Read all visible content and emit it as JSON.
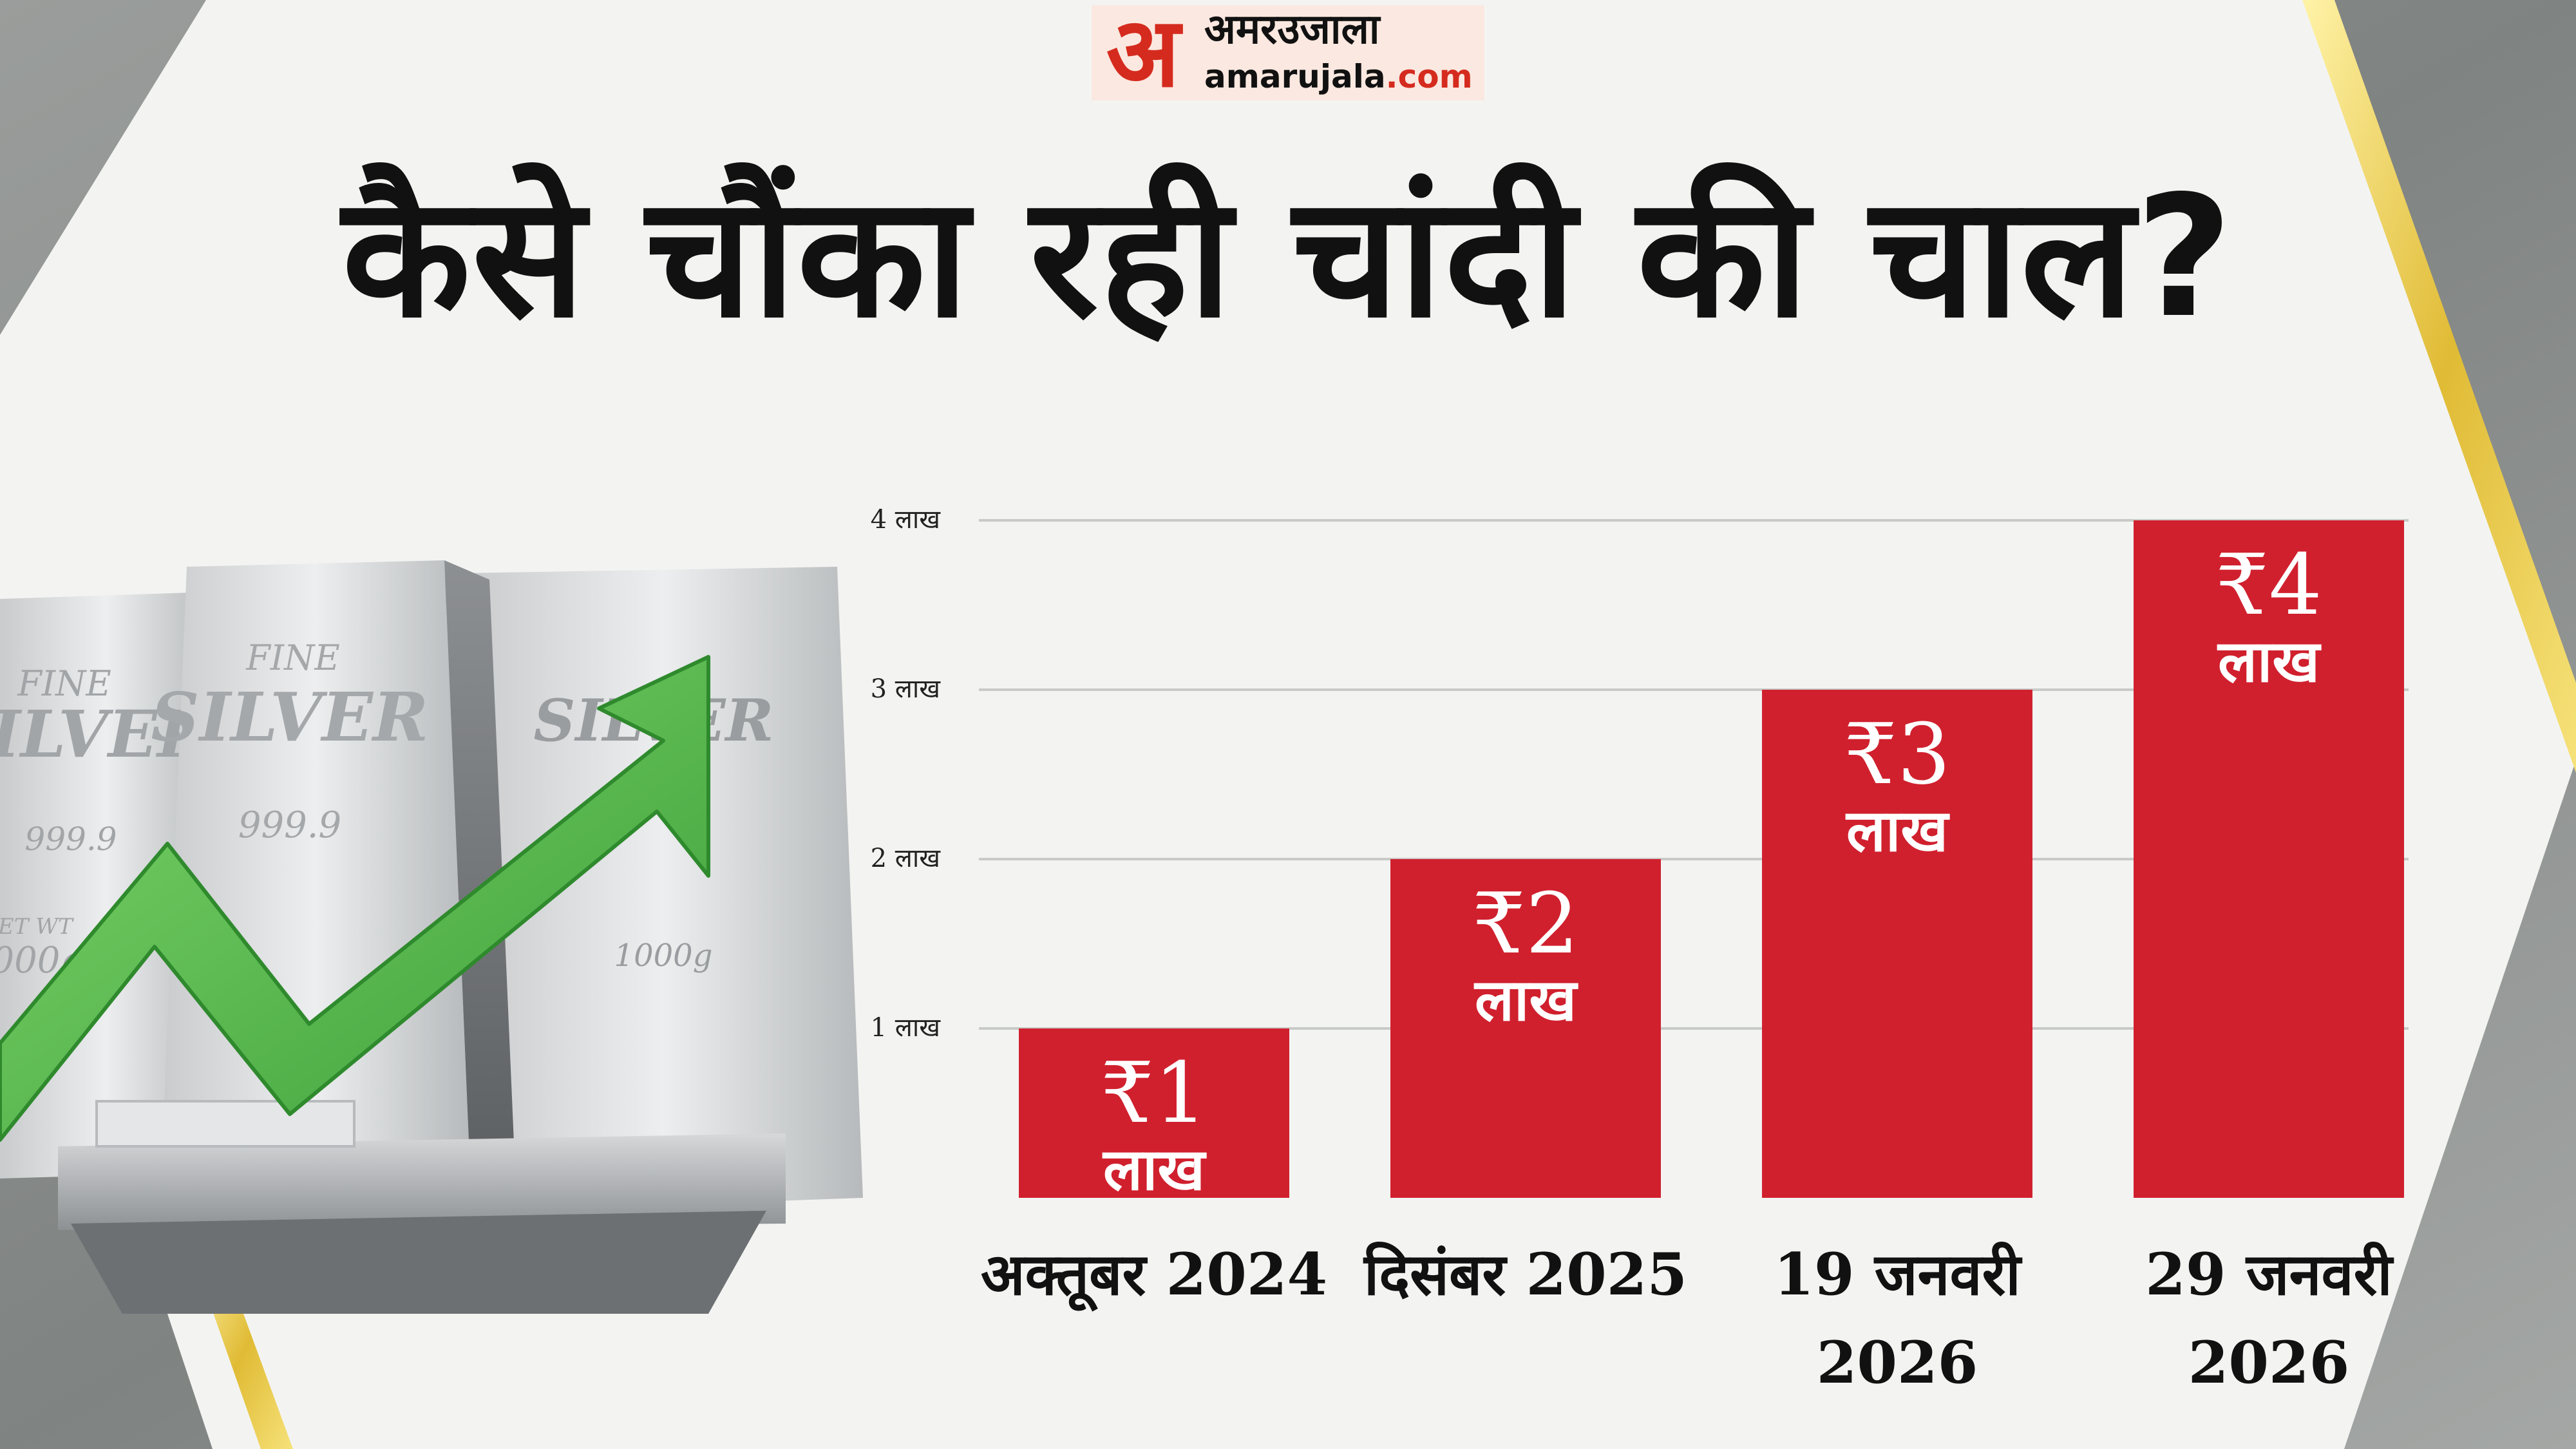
{
  "brand": {
    "mark": "अ",
    "name_hindi": "अमरउजाला",
    "domain_main": "amarujala",
    "domain_tld": ".com"
  },
  "title": "कैसे चौंका रही चांदी की चाल?",
  "illustration": {
    "bar_text_fine": "FINE",
    "bar_text_silver": "SILVER",
    "bar_text_purity": "999.9",
    "bar_text_weight_label": "NET WT",
    "bar_text_weight": "1000g"
  },
  "colors": {
    "bar": "#d0202e",
    "arrow": "#4cb848",
    "panel": "#f3f4f2",
    "gold": "#e6c84a"
  },
  "chart_data": {
    "type": "bar",
    "categories": [
      "अक्तूबर 2024",
      "दिसंबर 2025",
      "19 जनवरी 2026",
      "29 जनवरी 2026"
    ],
    "category_lines": [
      [
        "अक्तूबर 2024"
      ],
      [
        "दिसंबर 2025"
      ],
      [
        "19 जनवरी",
        "2026"
      ],
      [
        "29 जनवरी",
        "2026"
      ]
    ],
    "values": [
      1,
      2,
      3,
      4
    ],
    "value_unit": "लाख",
    "value_prefix": "₹",
    "data_labels": [
      {
        "amount": "₹1",
        "unit": "लाख"
      },
      {
        "amount": "₹2",
        "unit": "लाख"
      },
      {
        "amount": "₹3",
        "unit": "लाख"
      },
      {
        "amount": "₹4",
        "unit": "लाख"
      }
    ],
    "y_ticks": [
      1,
      2,
      3,
      4
    ],
    "y_tick_labels": [
      "1 लाख",
      "2 लाख",
      "3 लाख",
      "4 लाख"
    ],
    "ylim": [
      0,
      4
    ],
    "grid": true,
    "title": "कैसे चौंका रही चांदी की चाल?",
    "xlabel": "",
    "ylabel": ""
  }
}
